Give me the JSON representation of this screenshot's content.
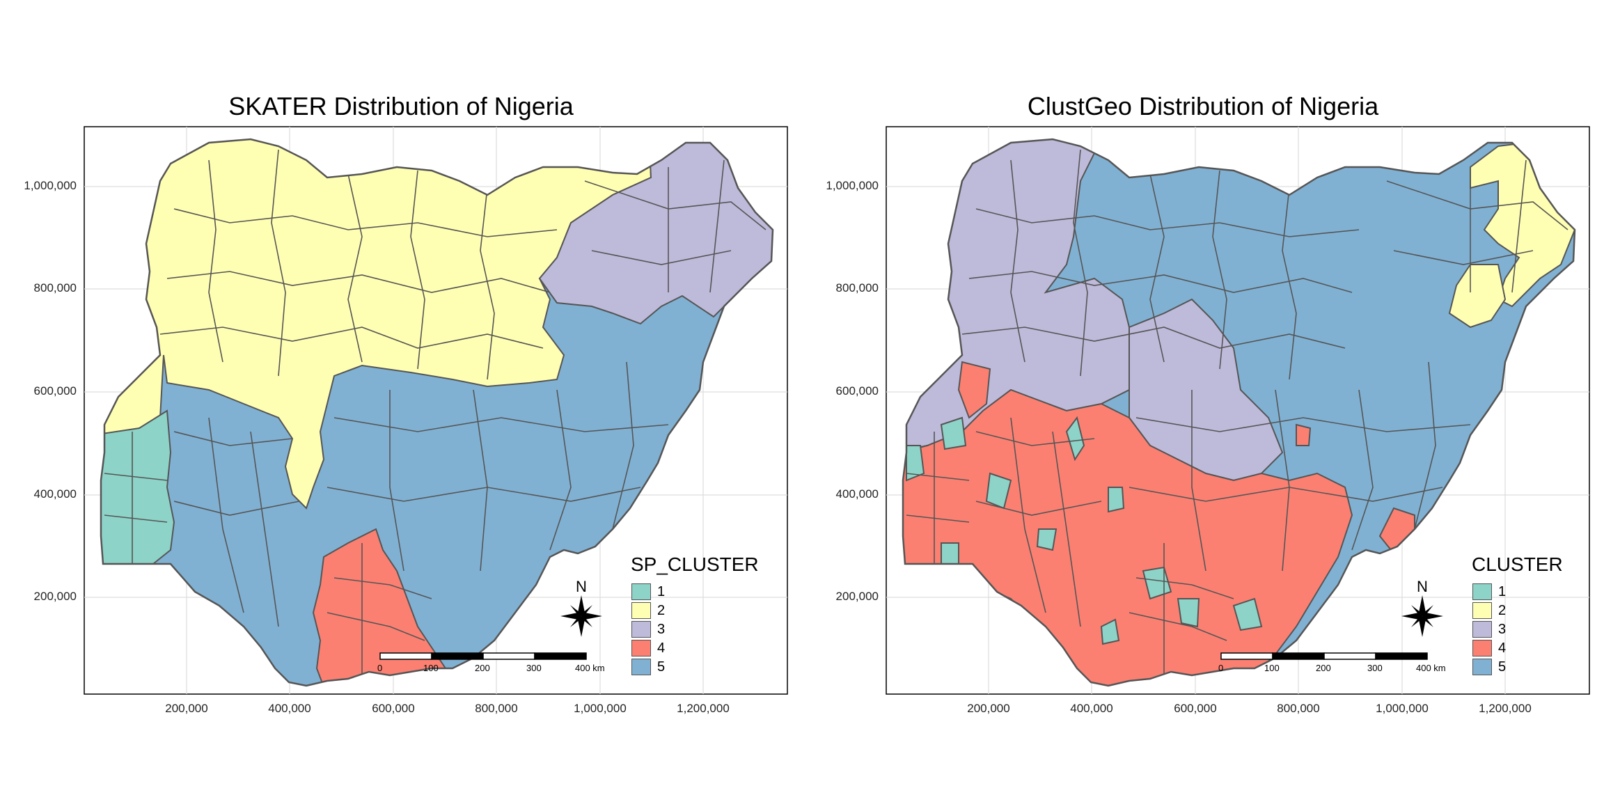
{
  "colors": {
    "cluster_1": "#8DD3C7",
    "cluster_2": "#FFFFB3",
    "cluster_3": "#BEBADA",
    "cluster_4": "#FB8072",
    "cluster_5": "#80B1D3",
    "border": "#555555",
    "grid": "#DDDDDD"
  },
  "maps": [
    {
      "title": "SKATER Distribution of Nigeria",
      "legend_title": "SP_CLUSTER",
      "legend_items": [
        "1",
        "2",
        "3",
        "4",
        "5"
      ],
      "y_ticks": [
        "1,000,000",
        "800,000",
        "600,000",
        "400,000",
        "200,000"
      ],
      "x_ticks": [
        "200,000",
        "400,000",
        "600,000",
        "800,000",
        "1,000,000",
        "1,200,000"
      ],
      "north_label": "N",
      "scale_labels": [
        "0",
        "100",
        "200",
        "300",
        "400 km"
      ]
    },
    {
      "title": "ClustGeo Distribution of Nigeria",
      "legend_title": "CLUSTER",
      "legend_items": [
        "1",
        "2",
        "3",
        "4",
        "5"
      ],
      "y_ticks": [
        "1,000,000",
        "800,000",
        "600,000",
        "400,000",
        "200,000"
      ],
      "x_ticks": [
        "200,000",
        "400,000",
        "600,000",
        "800,000",
        "1,000,000",
        "1,200,000"
      ],
      "north_label": "N",
      "scale_labels": [
        "0",
        "100",
        "200",
        "300",
        "400 km"
      ]
    }
  ]
}
